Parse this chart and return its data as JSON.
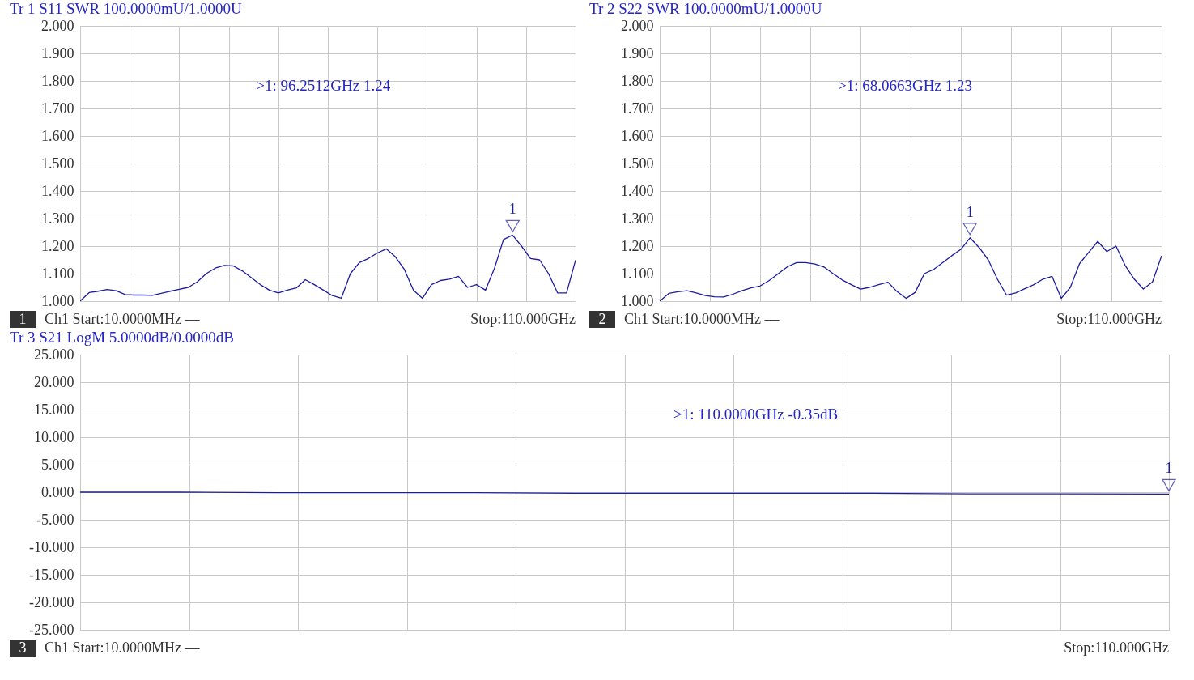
{
  "chart_data": [
    {
      "type": "line",
      "title": "Tr 1  S11 SWR 100.0000mU/1.0000U",
      "categories": [
        null,
        null,
        null,
        null,
        null,
        null,
        null,
        null,
        null,
        null,
        null,
        null,
        null,
        null,
        null,
        null,
        null,
        null,
        null,
        null,
        null,
        null,
        null,
        null,
        null,
        null,
        null,
        null,
        null,
        null,
        null,
        null,
        null,
        null,
        null,
        null,
        null,
        null,
        null,
        null,
        null,
        null,
        null,
        null,
        null,
        null,
        null,
        null,
        null,
        null,
        null,
        null,
        null,
        null,
        null,
        null
      ],
      "ylim": [
        1,
        2
      ],
      "yticks": [
        {
          "value": 1,
          "label": "1.000"
        },
        {
          "value": 1.1,
          "label": "1.100"
        },
        {
          "value": 1.2,
          "label": "1.200"
        },
        {
          "value": 1.3,
          "label": "1.300"
        },
        {
          "value": 1.4,
          "label": "1.400"
        },
        {
          "value": 1.5,
          "label": "1.500"
        },
        {
          "value": 1.6,
          "label": "1.600"
        },
        {
          "value": 1.7,
          "label": "1.700"
        },
        {
          "value": 1.8,
          "label": "1.800"
        },
        {
          "value": 1.9,
          "label": "1.900"
        },
        {
          "value": 2,
          "label": "2.000"
        }
      ],
      "tick_labels": "y",
      "grid": true,
      "marker": "none",
      "line_style": "solid",
      "color": "#1c1ca0",
      "values": [
        1.0,
        1.031,
        1.036,
        1.042,
        1.038,
        1.024,
        1.022,
        1.022,
        1.021,
        1.028,
        1.036,
        1.043,
        1.05,
        1.07,
        1.1,
        1.12,
        1.13,
        1.128,
        1.11,
        1.085,
        1.06,
        1.04,
        1.03,
        1.04,
        1.048,
        1.078,
        1.06,
        1.04,
        1.02,
        1.011,
        1.1,
        1.14,
        1.155,
        1.175,
        1.19,
        1.161,
        1.115,
        1.04,
        1.01,
        1.06,
        1.075,
        1.08,
        1.09,
        1.05,
        1.06,
        1.04,
        1.12,
        1.224,
        1.24,
        1.2,
        1.155,
        1.15,
        1.1,
        1.03,
        1.03,
        1.149
      ],
      "annotations": [
        "1",
        ">1:   96.2512GHz 1.24",
        "1",
        "Ch1  Start:10.0000MHz —",
        "Stop:110.000GHz"
      ]
    },
    {
      "type": "line",
      "title": "Tr 2  S22 SWR 100.0000mU/1.0000U",
      "categories": [
        null,
        null,
        null,
        null,
        null,
        null,
        null,
        null,
        null,
        null,
        null,
        null,
        null,
        null,
        null,
        null,
        null,
        null,
        null,
        null,
        null,
        null,
        null,
        null,
        null,
        null,
        null,
        null,
        null,
        null,
        null,
        null,
        null,
        null,
        null,
        null,
        null,
        null,
        null,
        null,
        null,
        null,
        null,
        null,
        null,
        null,
        null,
        null,
        null,
        null,
        null,
        null,
        null,
        null,
        null,
        null
      ],
      "ylim": [
        1,
        2
      ],
      "yticks": [
        {
          "value": 1,
          "label": "1.000"
        },
        {
          "value": 1.1,
          "label": "1.100"
        },
        {
          "value": 1.2,
          "label": "1.200"
        },
        {
          "value": 1.3,
          "label": "1.300"
        },
        {
          "value": 1.4,
          "label": "1.400"
        },
        {
          "value": 1.5,
          "label": "1.500"
        },
        {
          "value": 1.6,
          "label": "1.600"
        },
        {
          "value": 1.7,
          "label": "1.700"
        },
        {
          "value": 1.8,
          "label": "1.800"
        },
        {
          "value": 1.9,
          "label": "1.900"
        },
        {
          "value": 2,
          "label": "2.000"
        }
      ],
      "tick_labels": "y",
      "grid": true,
      "marker": "none",
      "line_style": "solid",
      "color": "#1c1ca0",
      "values": [
        1.0,
        1.028,
        1.034,
        1.038,
        1.03,
        1.02,
        1.016,
        1.015,
        1.025,
        1.038,
        1.048,
        1.055,
        1.075,
        1.1,
        1.125,
        1.14,
        1.14,
        1.135,
        1.124,
        1.1,
        1.077,
        1.06,
        1.044,
        1.05,
        1.06,
        1.069,
        1.035,
        1.01,
        1.032,
        1.1,
        1.115,
        1.14,
        1.165,
        1.188,
        1.23,
        1.195,
        1.15,
        1.08,
        1.022,
        1.03,
        1.045,
        1.06,
        1.08,
        1.09,
        1.01,
        1.05,
        1.136,
        1.177,
        1.217,
        1.18,
        1.2,
        1.13,
        1.08,
        1.044,
        1.07,
        1.165
      ],
      "annotations": [
        "1",
        ">1:   68.0663GHz 1.23",
        "2",
        "Ch1  Start:10.0000MHz —",
        "Stop:110.000GHz"
      ]
    },
    {
      "type": "line",
      "title": "Tr 3  S21 LogM 5.0000dB/0.0000dB",
      "categories": [
        null,
        null,
        null,
        null,
        null,
        null,
        null,
        null,
        null,
        null,
        null,
        null
      ],
      "ylim": [
        -25,
        25
      ],
      "yticks": [
        {
          "value": -25,
          "label": "-25.000"
        },
        {
          "value": -20,
          "label": "-20.000"
        },
        {
          "value": -15,
          "label": "-15.000"
        },
        {
          "value": -10,
          "label": "-10.000"
        },
        {
          "value": -5,
          "label": "-5.000"
        },
        {
          "value": 0,
          "label": "0.000"
        },
        {
          "value": 5,
          "label": "5.000"
        },
        {
          "value": 10,
          "label": "10.000"
        },
        {
          "value": 15,
          "label": "15.000"
        },
        {
          "value": 20,
          "label": "20.000"
        },
        {
          "value": 25,
          "label": "25.000"
        }
      ],
      "tick_labels": "y",
      "grid": true,
      "marker": "none",
      "line_style": "solid",
      "color": "#1c1ca0",
      "values": [
        0,
        0,
        -0.1,
        -0.1,
        -0.1,
        -0.2,
        -0.2,
        -0.2,
        -0.2,
        -0.3,
        -0.3,
        -0.35
      ],
      "annotations": [
        "1",
        ">1:  110.0000GHz -0.35dB",
        "3",
        "Ch1  Start:10.0000MHz —",
        "Stop:110.000GHz"
      ]
    }
  ]
}
